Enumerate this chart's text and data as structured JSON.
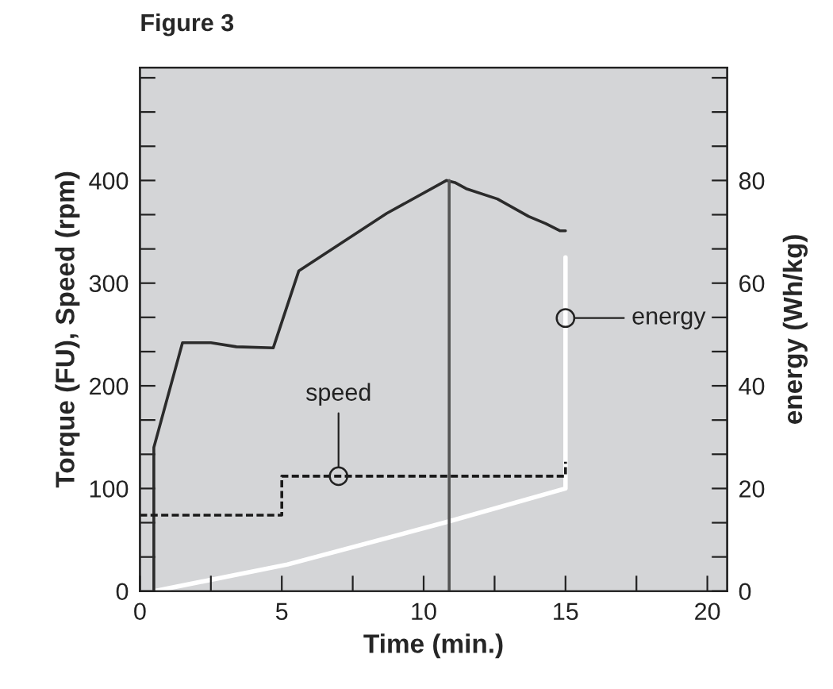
{
  "chart_data": {
    "type": "line",
    "title": "Figure 3",
    "xlabel": "Time (min.)",
    "ylabel": "Torque (FU), Speed (rpm)",
    "y2label": "energy (Wh/kg)",
    "xlim": [
      0,
      20.7
    ],
    "xticks": [
      0,
      {
        "value": 2.5,
        "label": null
      },
      5,
      {
        "value": 7.5,
        "label": null
      },
      10,
      {
        "value": 12.5,
        "label": null
      },
      15,
      {
        "value": 17.5,
        "label": null
      },
      20
    ],
    "ylim": [
      0,
      510
    ],
    "yticks": [
      0,
      {
        "value": 33.3,
        "label": null
      },
      {
        "value": 66.7,
        "label": null
      },
      100,
      {
        "value": 133.3,
        "label": null
      },
      {
        "value": 166.7,
        "label": null
      },
      200,
      {
        "value": 233.3,
        "label": null
      },
      {
        "value": 266.7,
        "label": null
      },
      300,
      {
        "value": 333.3,
        "label": null
      },
      {
        "value": 366.7,
        "label": null
      },
      400,
      {
        "value": 433.3,
        "label": null
      },
      {
        "value": 466.7,
        "label": null
      },
      {
        "value": 500,
        "label": null
      }
    ],
    "y2lim": [
      0,
      102
    ],
    "y2ticks": [
      0,
      {
        "value": 6.67,
        "label": null
      },
      {
        "value": 13.33,
        "label": null
      },
      20,
      {
        "value": 26.67,
        "label": null
      },
      {
        "value": 33.33,
        "label": null
      },
      40,
      {
        "value": 46.67,
        "label": null
      },
      {
        "value": 53.33,
        "label": null
      },
      60,
      {
        "value": 66.67,
        "label": null
      },
      {
        "value": 73.33,
        "label": null
      },
      80,
      {
        "value": 86.67,
        "label": null
      },
      {
        "value": 93.33,
        "label": null
      },
      {
        "value": 100,
        "label": null
      }
    ],
    "grid": false,
    "legend": false,
    "series": [
      {
        "color": "#2b2b2b",
        "x": [
          0.49,
          0.49,
          1.5,
          2.5,
          3.4,
          4.7,
          5.6,
          8.7,
          10.8,
          11.1,
          11.5,
          12.6,
          13.7,
          14.3,
          14.8,
          15.0
        ],
        "values": [
          0,
          140,
          242,
          242,
          238,
          237,
          312,
          368,
          400,
          398,
          392,
          382,
          365,
          358,
          351,
          351
        ]
      },
      {
        "color": "#555555",
        "x": [
          10.9,
          10.9
        ],
        "values": [
          0,
          400
        ]
      },
      {
        "color": "#1a1a1a",
        "line_style": "dashed",
        "x": [
          0,
          5,
          5,
          15,
          15
        ],
        "values": [
          74,
          74,
          112,
          112,
          126
        ]
      },
      {
        "color": "#ffffff",
        "axis": "y2",
        "x": [
          0.5,
          5.2,
          10.9,
          15,
          15
        ],
        "values": [
          0,
          5.2,
          13.6,
          20,
          65
        ]
      }
    ],
    "annotations": [
      {
        "text": "speed",
        "x": 7,
        "y": 112
      },
      {
        "text": "energy",
        "x": 15,
        "y": 266
      }
    ]
  }
}
